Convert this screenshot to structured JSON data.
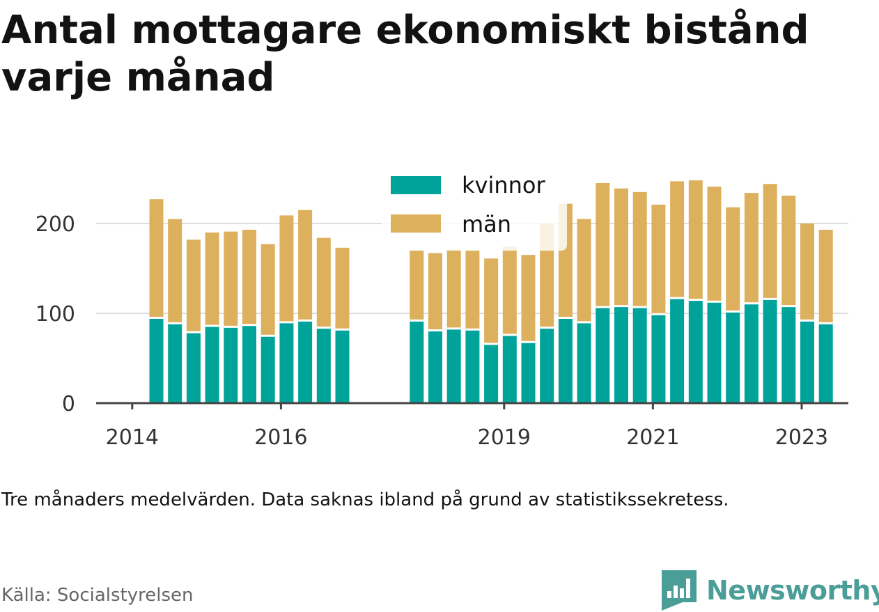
{
  "title": "Antal mottagare ekonomiskt bistånd varje månad",
  "note": "Tre månaders medelvärden. Data saknas ibland på grund av statistikssekretess.",
  "source": "Källa: Socialstyrelsen",
  "brand": {
    "name": "Newsworthy",
    "icon": "bar-chart-logo-icon",
    "color": "#4a9e97"
  },
  "colors": {
    "kvinnor": "#00a39a",
    "man": "#dcb05c",
    "axis": "#444444",
    "grid": "#dddddd"
  },
  "chart_data": {
    "type": "bar",
    "stacked": true,
    "grid": true,
    "legend_position": "top-center",
    "ylim": [
      0,
      250
    ],
    "yticks": [
      0,
      100,
      200
    ],
    "xticks": [
      "2014",
      "2016",
      "2019",
      "2021",
      "2023"
    ],
    "categories": [
      "2014-03",
      "2014-06",
      "2014-09",
      "2014-12",
      "2015-03",
      "2015-06",
      "2015-09",
      "2015-12",
      "2016-03",
      "2016-06",
      "2016-09",
      "2016-12",
      "2017-03",
      "2017-06",
      "2017-09",
      "2017-12",
      "2018-03",
      "2018-06",
      "2018-09",
      "2018-12",
      "2019-03",
      "2019-06",
      "2019-09",
      "2019-12",
      "2020-03",
      "2020-06",
      "2020-09",
      "2020-12",
      "2021-03",
      "2021-06",
      "2021-09",
      "2021-12",
      "2022-03",
      "2022-06",
      "2022-09",
      "2022-12",
      "2023-03"
    ],
    "series": [
      {
        "name": "kvinnor",
        "values": [
          95,
          89,
          79,
          86,
          85,
          87,
          75,
          90,
          92,
          84,
          82,
          null,
          null,
          null,
          92,
          81,
          83,
          82,
          66,
          76,
          68,
          84,
          95,
          90,
          107,
          108,
          107,
          99,
          117,
          115,
          113,
          102,
          111,
          116,
          108,
          92,
          89
        ]
      },
      {
        "name": "män",
        "values": [
          132,
          116,
          103,
          104,
          106,
          106,
          102,
          119,
          123,
          100,
          91,
          null,
          null,
          null,
          78,
          86,
          88,
          88,
          95,
          98,
          97,
          116,
          127,
          115,
          138,
          131,
          128,
          122,
          130,
          133,
          128,
          116,
          123,
          128,
          123,
          108,
          104
        ]
      }
    ]
  }
}
